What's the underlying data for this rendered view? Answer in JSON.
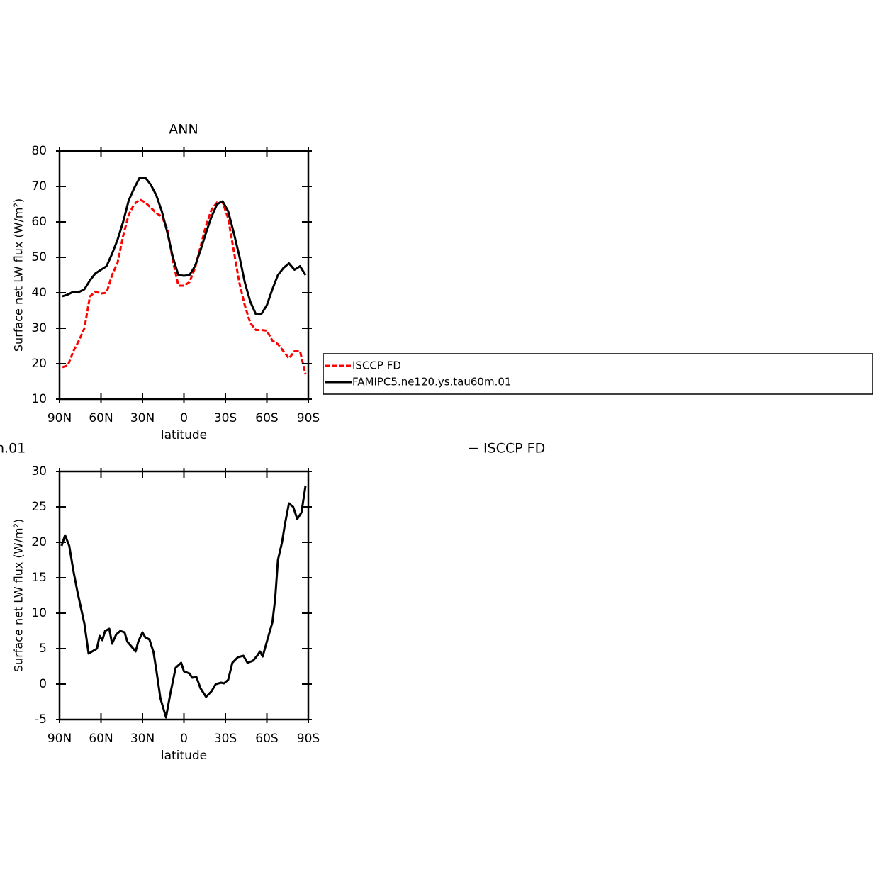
{
  "chart_data": [
    {
      "type": "line",
      "title": "ANN",
      "x_label": "latitude",
      "y_label": "Surface net LW flux (W/m²)",
      "x": [
        88,
        84,
        80,
        76,
        72,
        68,
        64,
        60,
        56,
        52,
        48,
        44,
        40,
        36,
        32,
        28,
        24,
        20,
        16,
        12,
        8,
        4,
        0,
        -4,
        -8,
        -12,
        -16,
        -20,
        -24,
        -28,
        -32,
        -36,
        -40,
        -44,
        -48,
        -52,
        -56,
        -60,
        -64,
        -68,
        -72,
        -76,
        -80,
        -84,
        -88
      ],
      "series": [
        {
          "name": "ISCCP FD",
          "color": "#ff0000",
          "dash": true,
          "values": [
            19,
            19.5,
            23.5,
            26.5,
            30,
            39,
            40.3,
            39.8,
            40,
            45,
            48.5,
            56,
            62,
            65,
            66.3,
            65.5,
            64,
            62.5,
            61.5,
            58,
            49,
            42,
            42,
            43,
            47,
            53,
            59,
            63.5,
            65.5,
            65.5,
            61,
            52,
            43,
            36.5,
            31.5,
            29.5,
            29.5,
            29.3,
            26.5,
            25.5,
            23.5,
            21.5,
            23.5,
            23.5,
            17
          ]
        },
        {
          "name": "FAMIPC5.ne120.ys.tau60m.01",
          "color": "#000000",
          "dash": false,
          "values": [
            39,
            39.5,
            40.3,
            40.2,
            41,
            43.5,
            45.5,
            46.5,
            47.5,
            51,
            55,
            60,
            66,
            69.5,
            72.5,
            72.5,
            70.5,
            67.5,
            63,
            57,
            50,
            45,
            44.8,
            45,
            47.5,
            52,
            57,
            61.5,
            65,
            65.8,
            63,
            57,
            50.5,
            43,
            37.5,
            34,
            34,
            36.5,
            41,
            45,
            47,
            48.3,
            46.5,
            47.5,
            45
          ]
        }
      ],
      "xlim": [
        90,
        -90
      ],
      "xticks": [
        {
          "value": 90,
          "label": "90N"
        },
        {
          "value": 60,
          "label": "60N"
        },
        {
          "value": 30,
          "label": "30N"
        },
        0,
        {
          "value": -30,
          "label": "30S"
        },
        {
          "value": -60,
          "label": "60S"
        },
        {
          "value": -90,
          "label": "90S"
        }
      ],
      "ylim": [
        10,
        80
      ],
      "yticks": [
        10,
        20,
        30,
        40,
        50,
        60,
        70,
        80
      ]
    },
    {
      "type": "line",
      "title_fragments": [
        "n.01",
        "− ISCCP FD"
      ],
      "x_label": "latitude",
      "y_label": "Surface net LW flux (W/m²)",
      "x": [
        88.5,
        86,
        83,
        80,
        77,
        72,
        69,
        63,
        61,
        59,
        57,
        54,
        52,
        49,
        46,
        43,
        41,
        35,
        33,
        30,
        28,
        25,
        22,
        20,
        17,
        13,
        10,
        6,
        2,
        0,
        -4,
        -6,
        -9,
        -12,
        -16,
        -20,
        -23,
        -27,
        -29,
        -32,
        -35,
        -39,
        -43,
        -46,
        -50,
        -53,
        -55,
        -57,
        -60,
        -64,
        -66,
        -68,
        -71,
        -73,
        -76,
        -79,
        -82,
        -85,
        -88
      ],
      "series": [
        {
          "color": "#000000",
          "dash": false,
          "values": [
            19.5,
            21,
            19.5,
            16,
            13,
            8.5,
            4.3,
            5,
            6.8,
            6.2,
            7.5,
            7.8,
            5.7,
            7,
            7.5,
            7.3,
            6,
            4.6,
            6,
            7.3,
            6.6,
            6.3,
            4.5,
            2,
            -2,
            -4.7,
            -1.5,
            2.3,
            3,
            1.8,
            1.5,
            0.9,
            1,
            -0.6,
            -1.8,
            -1,
            0,
            0.2,
            0.1,
            0.6,
            3,
            3.8,
            4,
            3,
            3.3,
            4,
            4.6,
            3.9,
            6,
            8.7,
            12,
            17.5,
            20,
            22.5,
            25.5,
            25,
            23.3,
            24.2,
            28
          ]
        }
      ],
      "xlim": [
        90,
        -90
      ],
      "xticks": [
        {
          "value": 90,
          "label": "90N"
        },
        {
          "value": 60,
          "label": "60N"
        },
        {
          "value": 30,
          "label": "30N"
        },
        0,
        {
          "value": -30,
          "label": "30S"
        },
        {
          "value": -60,
          "label": "60S"
        },
        {
          "value": -90,
          "label": "90S"
        }
      ],
      "ylim": [
        -5,
        30
      ],
      "yticks": [
        -5,
        0,
        5,
        10,
        15,
        20,
        25,
        30
      ]
    }
  ]
}
